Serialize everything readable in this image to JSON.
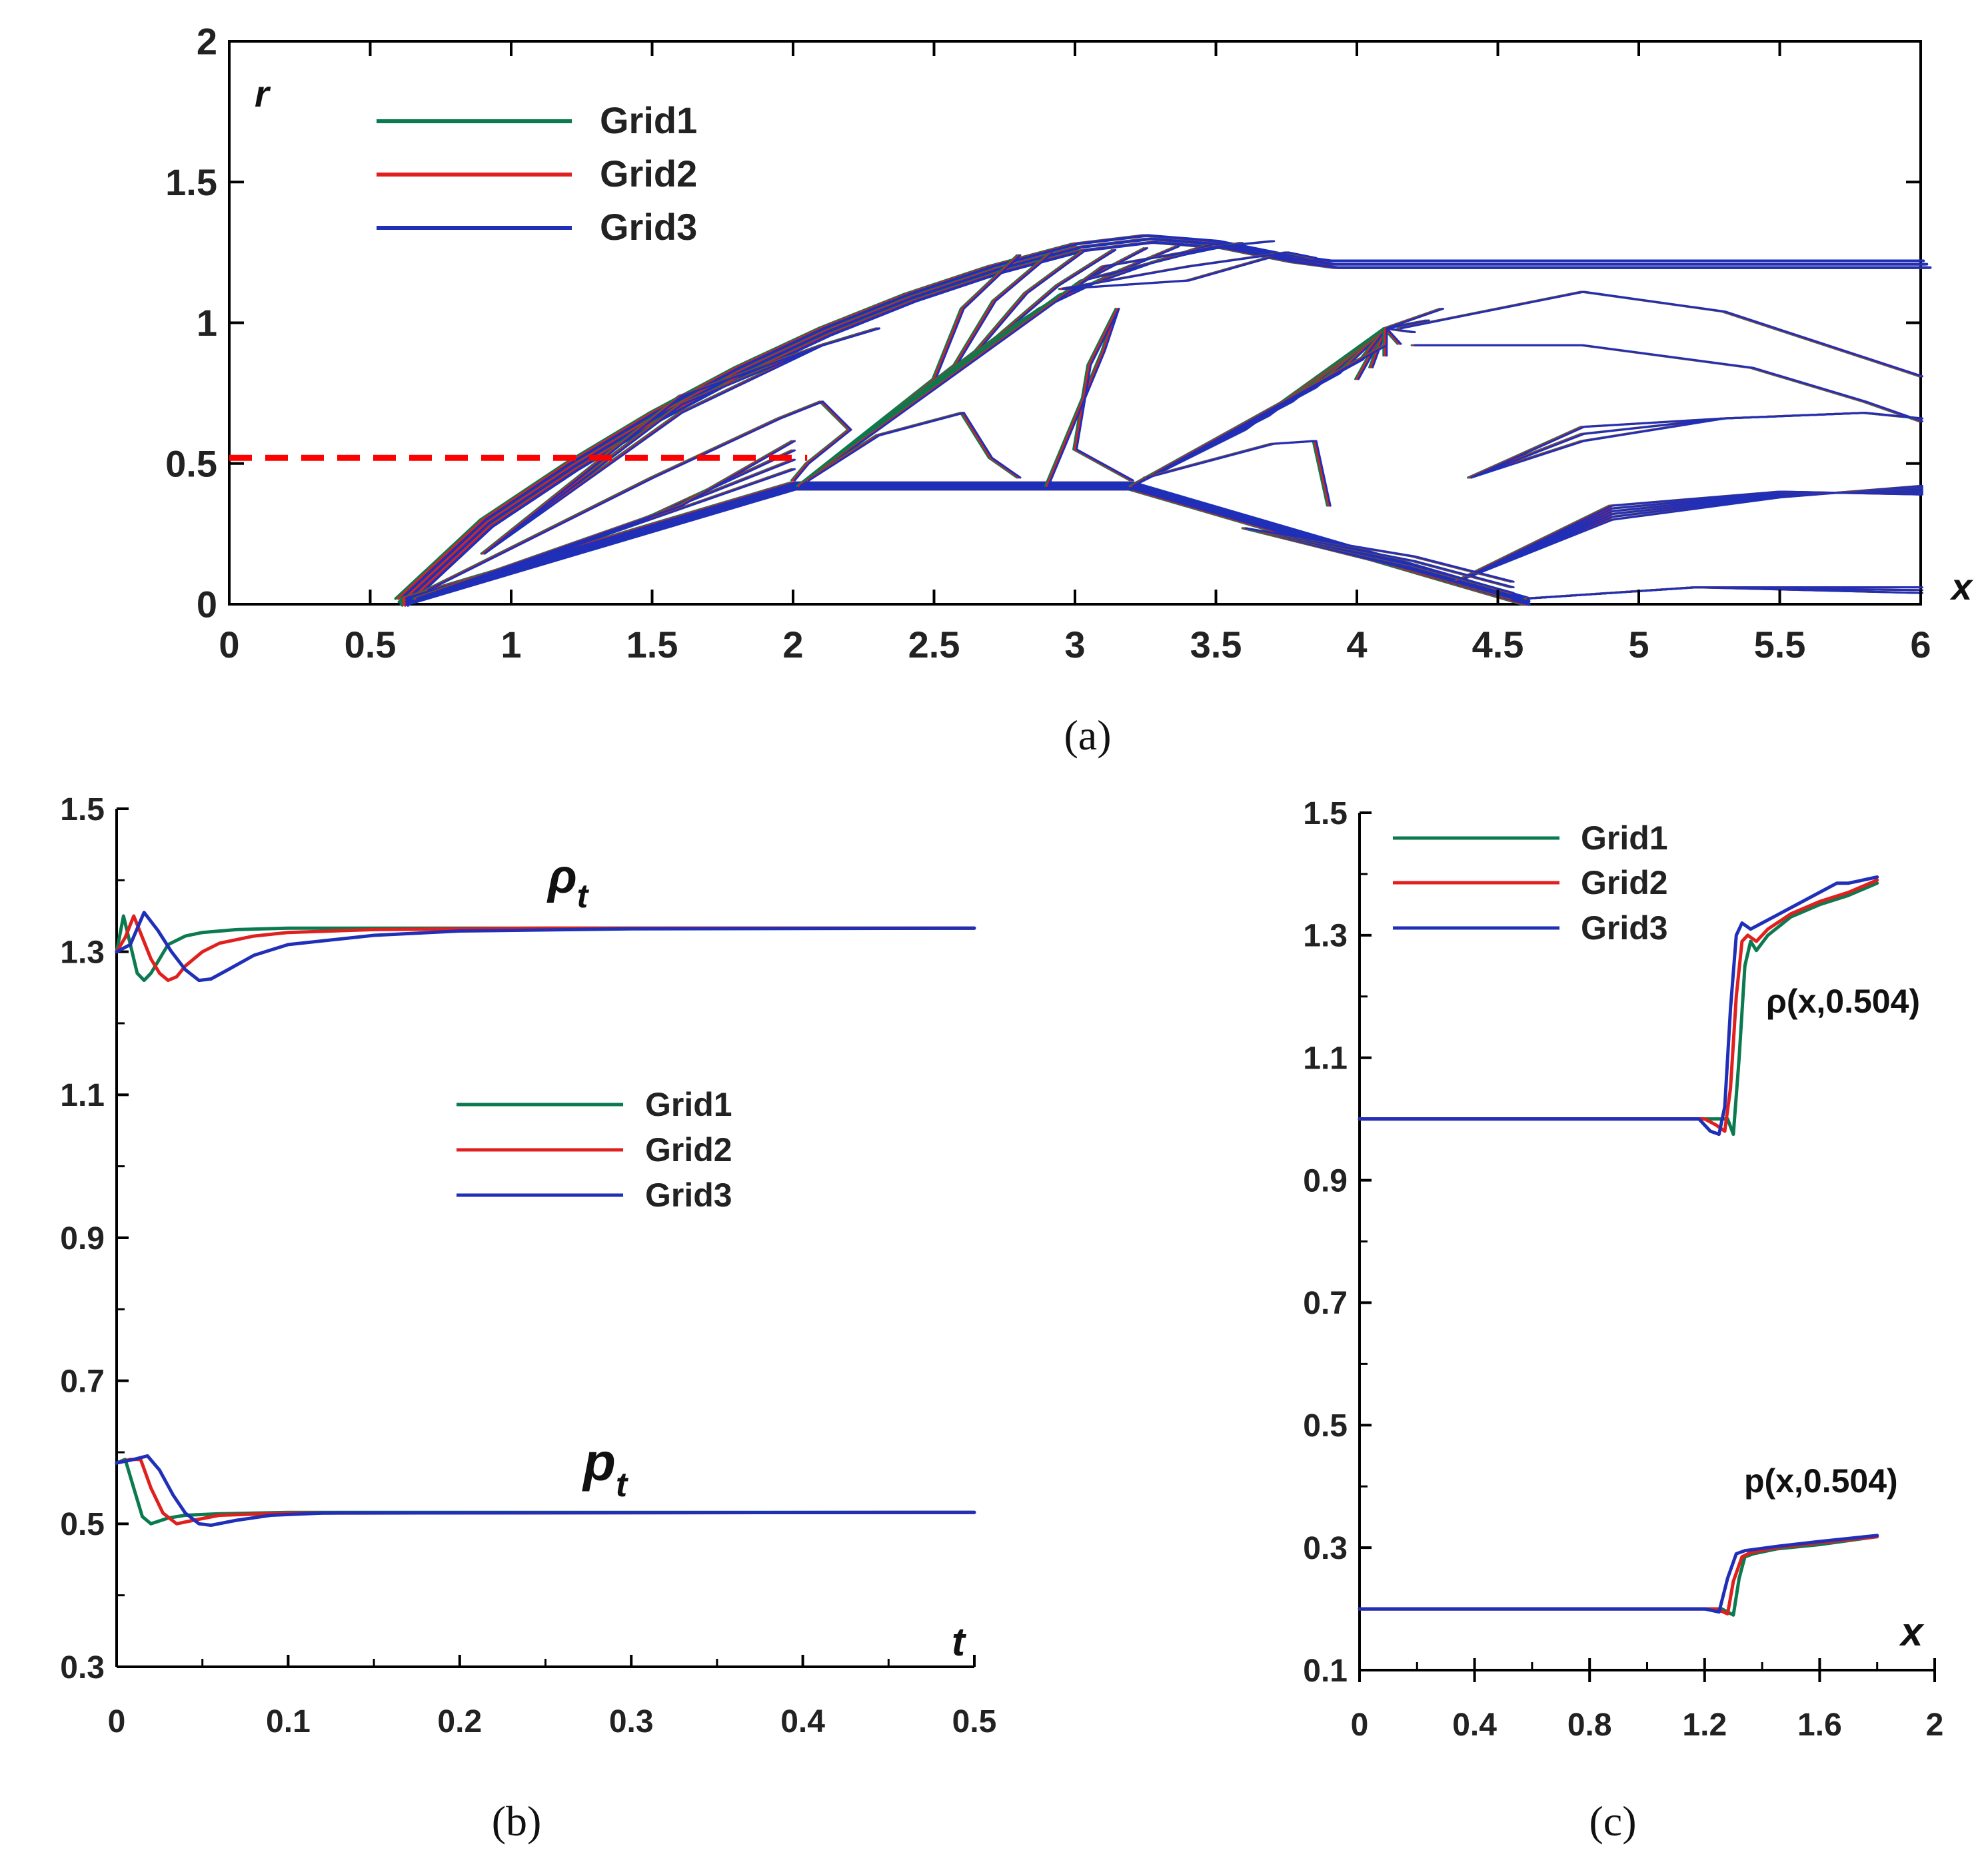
{
  "colors": {
    "grid1": "#0b7a4f",
    "grid2": "#e0201e",
    "grid3": "#1f2fb8",
    "axis": "#000000",
    "dashed": "#ff0000"
  },
  "chart_data": [
    {
      "id": "a",
      "type": "contour",
      "caption": "(a)",
      "xlabel": "x",
      "ylabel": "r",
      "xlim": [
        0,
        6
      ],
      "ylim": [
        0,
        2
      ],
      "xticks": [
        "0",
        "0.5",
        "1",
        "1.5",
        "2",
        "2.5",
        "3",
        "3.5",
        "4",
        "4.5",
        "5",
        "5.5",
        "6"
      ],
      "yticks": [
        "0",
        "0.5",
        "1",
        "1.5",
        "2"
      ],
      "legend": [
        "Grid1",
        "Grid2",
        "Grid3"
      ],
      "reference_line": {
        "style": "dashed",
        "y": 0.52,
        "x": [
          0,
          2.05
        ]
      },
      "body_profile": {
        "x": [
          0.62,
          2.0,
          3.2,
          4.6
        ],
        "r": [
          0,
          0.41,
          0.41,
          0.0
        ]
      },
      "shock_front": {
        "x": [
          0.6,
          0.9,
          1.2,
          1.5,
          1.8,
          2.1,
          2.4,
          2.7,
          3.0,
          3.25,
          3.5,
          3.75,
          3.9,
          6.0
        ],
        "r": [
          0.02,
          0.3,
          0.5,
          0.68,
          0.84,
          0.98,
          1.1,
          1.2,
          1.28,
          1.31,
          1.29,
          1.24,
          1.22,
          1.22
        ]
      }
    },
    {
      "id": "b",
      "type": "line",
      "caption": "(b)",
      "xlabel": "t",
      "xlim": [
        0,
        0.5
      ],
      "ylim": [
        0.3,
        1.5
      ],
      "xticks": [
        "0",
        "0.1",
        "0.2",
        "0.3",
        "0.4",
        "0.5"
      ],
      "yticks": [
        "0.3",
        "0.5",
        "0.7",
        "0.9",
        "1.1",
        "1.3",
        "1.5"
      ],
      "legend": [
        "Grid1",
        "Grid2",
        "Grid3"
      ],
      "annotations": [
        {
          "base": "ρ",
          "sub": "t",
          "x": 0.255,
          "y": 1.38
        },
        {
          "base": "p",
          "sub": "t",
          "x": 0.255,
          "y": 0.56
        }
      ],
      "series": [
        {
          "name": "Grid1",
          "group": "rho",
          "x": [
            0,
            0.004,
            0.008,
            0.012,
            0.016,
            0.02,
            0.025,
            0.03,
            0.04,
            0.05,
            0.07,
            0.1,
            0.2,
            0.5
          ],
          "values": [
            1.3,
            1.35,
            1.31,
            1.27,
            1.26,
            1.27,
            1.29,
            1.31,
            1.322,
            1.327,
            1.331,
            1.333,
            1.333,
            1.333
          ]
        },
        {
          "name": "Grid2",
          "group": "rho",
          "x": [
            0,
            0.005,
            0.01,
            0.015,
            0.02,
            0.025,
            0.03,
            0.035,
            0.04,
            0.05,
            0.06,
            0.08,
            0.1,
            0.15,
            0.25,
            0.5
          ],
          "values": [
            1.3,
            1.32,
            1.35,
            1.32,
            1.29,
            1.27,
            1.26,
            1.265,
            1.28,
            1.3,
            1.312,
            1.322,
            1.327,
            1.331,
            1.333,
            1.333
          ]
        },
        {
          "name": "Grid3",
          "group": "rho",
          "x": [
            0,
            0.008,
            0.016,
            0.024,
            0.032,
            0.04,
            0.048,
            0.055,
            0.065,
            0.08,
            0.1,
            0.15,
            0.2,
            0.3,
            0.5
          ],
          "values": [
            1.3,
            1.31,
            1.355,
            1.33,
            1.3,
            1.275,
            1.26,
            1.262,
            1.275,
            1.295,
            1.31,
            1.323,
            1.329,
            1.332,
            1.333
          ]
        },
        {
          "name": "Grid1",
          "group": "p",
          "x": [
            0,
            0.005,
            0.01,
            0.015,
            0.02,
            0.03,
            0.04,
            0.06,
            0.1,
            0.5
          ],
          "values": [
            0.585,
            0.59,
            0.55,
            0.51,
            0.5,
            0.508,
            0.512,
            0.514,
            0.516,
            0.516
          ]
        },
        {
          "name": "Grid2",
          "group": "p",
          "x": [
            0,
            0.008,
            0.014,
            0.02,
            0.027,
            0.035,
            0.045,
            0.06,
            0.1,
            0.5
          ],
          "values": [
            0.585,
            0.59,
            0.59,
            0.55,
            0.515,
            0.5,
            0.505,
            0.512,
            0.515,
            0.516
          ]
        },
        {
          "name": "Grid3",
          "group": "p",
          "x": [
            0,
            0.01,
            0.018,
            0.025,
            0.033,
            0.04,
            0.048,
            0.055,
            0.07,
            0.09,
            0.12,
            0.5
          ],
          "values": [
            0.585,
            0.59,
            0.595,
            0.575,
            0.54,
            0.515,
            0.5,
            0.498,
            0.505,
            0.512,
            0.515,
            0.516
          ]
        }
      ]
    },
    {
      "id": "c",
      "type": "line",
      "caption": "(c)",
      "xlabel": "x",
      "xlim": [
        0,
        2
      ],
      "ylim": [
        0.1,
        1.5
      ],
      "xticks": [
        "0",
        "0.4",
        "0.8",
        "1.2",
        "1.6",
        "2"
      ],
      "yticks": [
        "0.1",
        "0.3",
        "0.5",
        "0.7",
        "0.9",
        "1.1",
        "1.3",
        "1.5"
      ],
      "legend": [
        "Grid1",
        "Grid2",
        "Grid3"
      ],
      "annotations": [
        {
          "label": "ρ(x,0.504)",
          "x": 1.42,
          "y": 1.38
        },
        {
          "label": "p(x,0.504)",
          "x": 1.35,
          "y": 0.4
        }
      ],
      "series": [
        {
          "name": "Grid1",
          "group": "rho",
          "x": [
            0,
            1.2,
            1.28,
            1.3,
            1.32,
            1.34,
            1.36,
            1.38,
            1.42,
            1.5,
            1.6,
            1.7,
            1.8
          ],
          "values": [
            1.0,
            1.0,
            1.0,
            0.975,
            1.1,
            1.25,
            1.29,
            1.275,
            1.3,
            1.33,
            1.35,
            1.365,
            1.385
          ]
        },
        {
          "name": "Grid2",
          "group": "rho",
          "x": [
            0,
            1.2,
            1.24,
            1.27,
            1.29,
            1.31,
            1.33,
            1.35,
            1.38,
            1.42,
            1.5,
            1.6,
            1.7,
            1.8
          ],
          "values": [
            1.0,
            1.0,
            0.99,
            0.98,
            1.05,
            1.2,
            1.29,
            1.3,
            1.29,
            1.31,
            1.335,
            1.355,
            1.37,
            1.39
          ]
        },
        {
          "name": "Grid3",
          "group": "rho",
          "x": [
            0,
            1.18,
            1.22,
            1.25,
            1.27,
            1.29,
            1.31,
            1.33,
            1.36,
            1.4,
            1.5,
            1.6,
            1.66,
            1.7,
            1.8
          ],
          "values": [
            1.0,
            1.0,
            0.98,
            0.975,
            1.02,
            1.18,
            1.3,
            1.32,
            1.31,
            1.32,
            1.345,
            1.37,
            1.385,
            1.385,
            1.395
          ]
        },
        {
          "name": "Grid1",
          "group": "p",
          "x": [
            0,
            1.26,
            1.3,
            1.32,
            1.34,
            1.37,
            1.45,
            1.6,
            1.8
          ],
          "values": [
            0.2,
            0.2,
            0.19,
            0.25,
            0.285,
            0.29,
            0.298,
            0.305,
            0.318
          ]
        },
        {
          "name": "Grid2",
          "group": "p",
          "x": [
            0,
            1.24,
            1.28,
            1.3,
            1.33,
            1.36,
            1.45,
            1.6,
            1.8
          ],
          "values": [
            0.2,
            0.2,
            0.192,
            0.245,
            0.285,
            0.292,
            0.3,
            0.308,
            0.318
          ]
        },
        {
          "name": "Grid3",
          "group": "p",
          "x": [
            0,
            1.2,
            1.25,
            1.28,
            1.31,
            1.34,
            1.45,
            1.6,
            1.8
          ],
          "values": [
            0.2,
            0.2,
            0.195,
            0.25,
            0.29,
            0.295,
            0.302,
            0.31,
            0.32
          ]
        }
      ]
    }
  ]
}
